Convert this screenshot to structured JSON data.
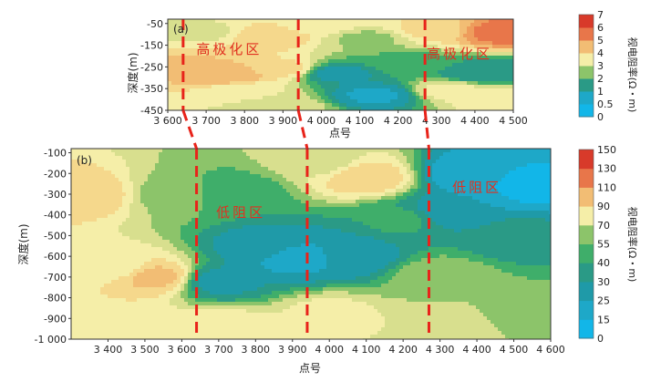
{
  "chart_data": [
    {
      "id": "a",
      "type": "heatmap",
      "panel_label": "(a)",
      "xlabel": "点号",
      "ylabel": "深度(m)",
      "xlim": [
        3600,
        4500
      ],
      "ylim": [
        -450,
        -30
      ],
      "x_ticks": [
        3600,
        3700,
        3800,
        3900,
        4000,
        4100,
        4200,
        4300,
        4400,
        4500
      ],
      "x_tick_labels": [
        "3 600",
        "3 700",
        "3 800",
        "3 900",
        "4 000",
        "4 100",
        "4 200",
        "4 300",
        "4 400",
        "4 500"
      ],
      "y_ticks": [
        -50,
        -150,
        -250,
        -350,
        -450
      ],
      "y_tick_labels": [
        "-50",
        "-150",
        "-250",
        "-350",
        "-450"
      ],
      "colorbar": {
        "label": "视电阻率(Ω・m)",
        "ticks": [
          0,
          0.5,
          1,
          2,
          3,
          4,
          5,
          6,
          7
        ],
        "tick_labels": [
          "0",
          "0.5",
          "1",
          "2",
          "3",
          "4",
          "5",
          "6",
          "7"
        ]
      },
      "annotations": [
        {
          "text": "高极化区",
          "x": 3760,
          "y": -190
        },
        {
          "text": "高极化区",
          "x": 4360,
          "y": -210
        }
      ],
      "dashed_lines_x": [
        3640,
        3940,
        4270
      ],
      "blobs": [
        {
          "x": 3650,
          "y": -250,
          "v": 4.6
        },
        {
          "x": 3700,
          "y": -90,
          "v": 3.4
        },
        {
          "x": 3760,
          "y": -290,
          "v": 5.0
        },
        {
          "x": 3800,
          "y": -360,
          "v": 3.6
        },
        {
          "x": 3860,
          "y": -110,
          "v": 4.4
        },
        {
          "x": 3900,
          "y": -260,
          "v": 4.2
        },
        {
          "x": 3980,
          "y": -60,
          "v": 3.9
        },
        {
          "x": 4040,
          "y": -280,
          "v": 1.3
        },
        {
          "x": 4120,
          "y": -120,
          "v": 2.9
        },
        {
          "x": 4140,
          "y": -380,
          "v": 0.9
        },
        {
          "x": 4220,
          "y": -230,
          "v": 2.3
        },
        {
          "x": 4280,
          "y": -80,
          "v": 4.1
        },
        {
          "x": 4340,
          "y": -360,
          "v": 3.7
        },
        {
          "x": 4420,
          "y": -280,
          "v": 1.5
        },
        {
          "x": 4470,
          "y": -90,
          "v": 5.8
        },
        {
          "x": 4480,
          "y": -400,
          "v": 3.9
        },
        {
          "x": 3900,
          "y": -430,
          "v": 3.3
        }
      ]
    },
    {
      "id": "b",
      "type": "heatmap",
      "panel_label": "(b)",
      "xlabel": "点号",
      "ylabel": "深度(m)",
      "xlim": [
        3300,
        4600
      ],
      "ylim": [
        -1000,
        -80
      ],
      "x_ticks": [
        3400,
        3500,
        3600,
        3700,
        3800,
        3900,
        4000,
        4100,
        4200,
        4300,
        4400,
        4500,
        4600
      ],
      "x_tick_labels": [
        "3 400",
        "3 500",
        "3 600",
        "3 700",
        "3 800",
        "3 900",
        "4 000",
        "4 100",
        "4 200",
        "4 300",
        "4 400",
        "4 500",
        "4 600"
      ],
      "y_ticks": [
        -100,
        -200,
        -300,
        -400,
        -500,
        -600,
        -700,
        -800,
        -900,
        -1000
      ],
      "y_tick_labels": [
        "-100",
        "-200",
        "-300",
        "-400",
        "-500",
        "-600",
        "-700",
        "-800",
        "-900",
        "-1 000"
      ],
      "colorbar": {
        "label": "视电阻率(Ω・m)",
        "ticks": [
          0,
          15,
          25,
          30,
          40,
          55,
          70,
          90,
          110,
          130,
          150
        ],
        "tick_labels": [
          "0",
          "15",
          "25",
          "30",
          "40",
          "55",
          "70",
          "90",
          "110",
          "130",
          "150"
        ]
      },
      "annotations": [
        {
          "text": "低阻区",
          "x": 3760,
          "y": -410
        },
        {
          "text": "低阻区",
          "x": 4400,
          "y": -290
        }
      ],
      "dashed_lines_x": [
        3640,
        3940,
        4270
      ],
      "blobs": [
        {
          "x": 3340,
          "y": -300,
          "v": 95
        },
        {
          "x": 3420,
          "y": -650,
          "v": 80
        },
        {
          "x": 3530,
          "y": -700,
          "v": 100
        },
        {
          "x": 3580,
          "y": -300,
          "v": 60
        },
        {
          "x": 3400,
          "y": -920,
          "v": 85
        },
        {
          "x": 3740,
          "y": -300,
          "v": 45
        },
        {
          "x": 3820,
          "y": -560,
          "v": 25
        },
        {
          "x": 3900,
          "y": -610,
          "v": 18
        },
        {
          "x": 3700,
          "y": -720,
          "v": 28
        },
        {
          "x": 4050,
          "y": -600,
          "v": 22
        },
        {
          "x": 4100,
          "y": -220,
          "v": 95
        },
        {
          "x": 3980,
          "y": -140,
          "v": 70
        },
        {
          "x": 4200,
          "y": -420,
          "v": 45
        },
        {
          "x": 4380,
          "y": -200,
          "v": 12
        },
        {
          "x": 4550,
          "y": -260,
          "v": 8
        },
        {
          "x": 4320,
          "y": -380,
          "v": 22
        },
        {
          "x": 4500,
          "y": -520,
          "v": 38
        },
        {
          "x": 4300,
          "y": -700,
          "v": 62
        },
        {
          "x": 4000,
          "y": -880,
          "v": 78
        },
        {
          "x": 3700,
          "y": -950,
          "v": 85
        },
        {
          "x": 4550,
          "y": -900,
          "v": 60
        },
        {
          "x": 4300,
          "y": -960,
          "v": 75
        }
      ]
    }
  ]
}
